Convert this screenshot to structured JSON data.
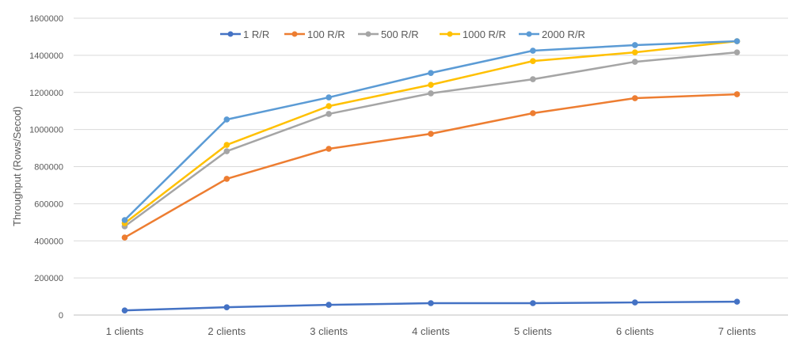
{
  "chart_data": {
    "type": "line",
    "title": "",
    "xlabel": "",
    "ylabel": "Throughput (Rows/Secod)",
    "categories": [
      "1 clients",
      "2 clients",
      "3 clients",
      "4 clients",
      "5 clients",
      "6 clients",
      "7 clients"
    ],
    "ylim": [
      0,
      1600000
    ],
    "yticks": [
      "0",
      "200000",
      "400000",
      "600000",
      "800000",
      "1000000",
      "1200000",
      "1400000",
      "1600000"
    ],
    "grid": true,
    "legend_position": "top",
    "series": [
      {
        "name": "1 R/R",
        "color": "#4472C4",
        "values": [
          25000,
          42000,
          55000,
          64000,
          64000,
          68000,
          72000
        ]
      },
      {
        "name": "100 R/R",
        "color": "#ED7D31",
        "values": [
          418000,
          734000,
          896000,
          977000,
          1088000,
          1169000,
          1190000
        ]
      },
      {
        "name": "500 R/R",
        "color": "#A5A5A5",
        "values": [
          478000,
          883000,
          1084000,
          1195000,
          1271000,
          1365000,
          1416000
        ]
      },
      {
        "name": "1000 R/R",
        "color": "#FFC000",
        "values": [
          495000,
          917000,
          1126000,
          1241000,
          1369000,
          1416000,
          1476000
        ]
      },
      {
        "name": "2000 R/R",
        "color": "#5B9BD5",
        "values": [
          512000,
          1054000,
          1173000,
          1305000,
          1425000,
          1455000,
          1476000
        ]
      }
    ]
  }
}
